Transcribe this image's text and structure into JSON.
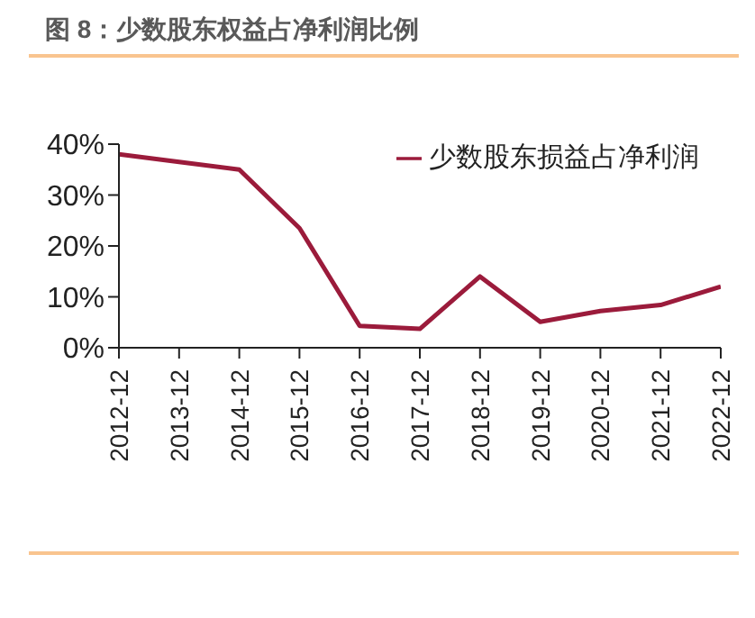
{
  "chart_data": {
    "type": "line",
    "title": "图 8：少数股东权益占净利润比例",
    "categories": [
      "2012-12",
      "2013-12",
      "2014-12",
      "2015-12",
      "2016-12",
      "2017-12",
      "2018-12",
      "2019-12",
      "2020-12",
      "2021-12",
      "2022-12"
    ],
    "series": [
      {
        "name": "少数股东损益占净利润",
        "color": "#9b1b3b",
        "values": [
          38,
          36.5,
          35,
          23.5,
          4.3,
          3.7,
          14,
          5.1,
          7.2,
          8.4,
          12
        ]
      }
    ],
    "ylim": [
      0,
      40
    ],
    "yticks": [
      {
        "value": 0,
        "label": "0%"
      },
      {
        "value": 10,
        "label": "10%"
      },
      {
        "value": 20,
        "label": "20%"
      },
      {
        "value": 30,
        "label": "30%"
      },
      {
        "value": 40,
        "label": "40%"
      }
    ],
    "grid": false,
    "legend": "top right",
    "marker": "none",
    "line_style": "solid"
  }
}
